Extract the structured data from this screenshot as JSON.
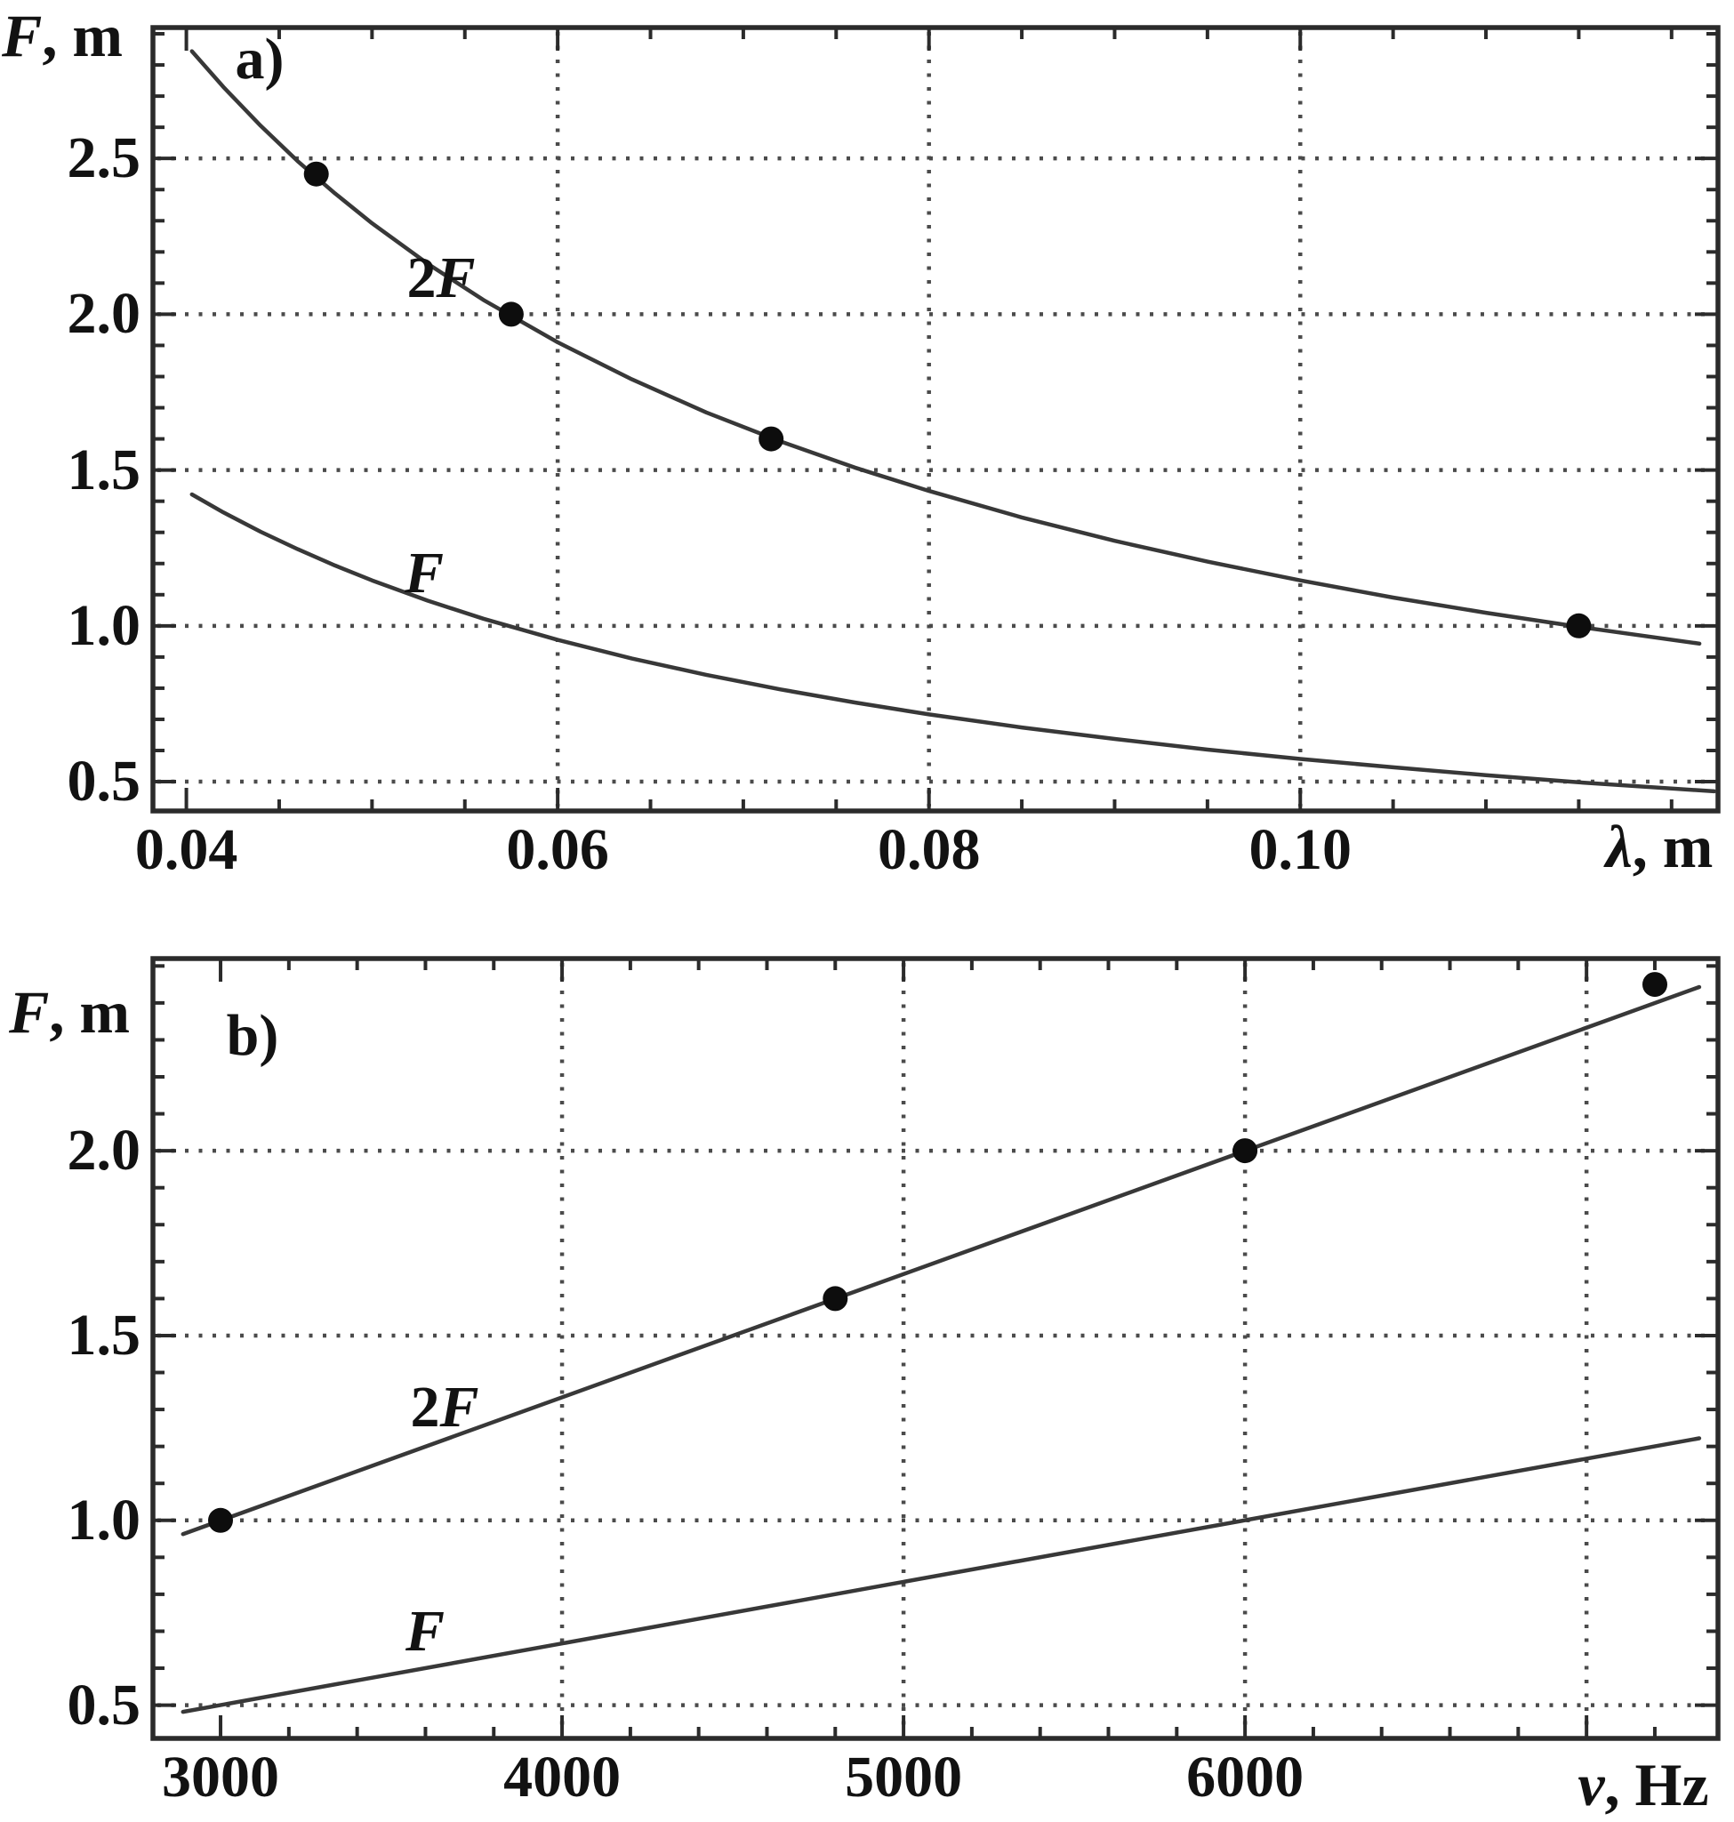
{
  "figure": {
    "background": "#ffffff",
    "ink": "#2b2b2b",
    "grid_color": "#4b4b4b",
    "point_color": "#0d0d0d"
  },
  "chart_data": [
    {
      "type": "line",
      "panel_label": "a)",
      "y_label_sym": "F",
      "y_label_rest": ", m",
      "x_label_sym": "λ",
      "x_label_rest": ", m",
      "xlim": [
        0.0382,
        0.1225
      ],
      "ylim": [
        0.406,
        2.92
      ],
      "x_ticks": [
        {
          "v": 0.04,
          "label": "0.04"
        },
        {
          "v": 0.06,
          "label": "0.06"
        },
        {
          "v": 0.08,
          "label": "0.08"
        },
        {
          "v": 0.1,
          "label": "0.10"
        }
      ],
      "y_ticks": [
        {
          "v": 0.5,
          "label": "0.5"
        },
        {
          "v": 1.0,
          "label": "1.0"
        },
        {
          "v": 1.5,
          "label": "1.5"
        },
        {
          "v": 2.0,
          "label": "2.0"
        },
        {
          "v": 2.5,
          "label": "2.5"
        }
      ],
      "x_minor_step": 0.005,
      "y_minor_step": 0.1,
      "x_gridlines": [
        0.06,
        0.08,
        0.1
      ],
      "y_gridlines": [
        0.5,
        1.0,
        1.5,
        2.0,
        2.5
      ],
      "grid_style": "dotted",
      "series": [
        {
          "name": "2F",
          "label_prefix": "2",
          "label_sym": "F",
          "curve": [
            [
              0.0403,
              2.844
            ],
            [
              0.042,
              2.729
            ],
            [
              0.044,
              2.605
            ],
            [
              0.046,
              2.491
            ],
            [
              0.048,
              2.388
            ],
            [
              0.05,
              2.292
            ],
            [
              0.053,
              2.162
            ],
            [
              0.056,
              2.046
            ],
            [
              0.06,
              1.91
            ],
            [
              0.064,
              1.791
            ],
            [
              0.068,
              1.685
            ],
            [
              0.072,
              1.592
            ],
            [
              0.076,
              1.508
            ],
            [
              0.08,
              1.433
            ],
            [
              0.085,
              1.348
            ],
            [
              0.09,
              1.273
            ],
            [
              0.095,
              1.206
            ],
            [
              0.1,
              1.146
            ],
            [
              0.105,
              1.091
            ],
            [
              0.11,
              1.042
            ],
            [
              0.115,
              0.997
            ],
            [
              0.1215,
              0.943
            ]
          ],
          "points": [
            [
              0.047,
              2.45
            ],
            [
              0.0575,
              2.0
            ],
            [
              0.0715,
              1.6
            ],
            [
              0.115,
              1.0
            ]
          ]
        },
        {
          "name": "F",
          "label_prefix": "",
          "label_sym": "F",
          "curve": [
            [
              0.0403,
              1.422
            ],
            [
              0.042,
              1.364
            ],
            [
              0.044,
              1.302
            ],
            [
              0.046,
              1.246
            ],
            [
              0.048,
              1.194
            ],
            [
              0.05,
              1.146
            ],
            [
              0.053,
              1.081
            ],
            [
              0.056,
              1.023
            ],
            [
              0.06,
              0.955
            ],
            [
              0.064,
              0.895
            ],
            [
              0.068,
              0.843
            ],
            [
              0.072,
              0.796
            ],
            [
              0.076,
              0.754
            ],
            [
              0.08,
              0.716
            ],
            [
              0.085,
              0.674
            ],
            [
              0.09,
              0.637
            ],
            [
              0.095,
              0.603
            ],
            [
              0.1,
              0.573
            ],
            [
              0.105,
              0.546
            ],
            [
              0.11,
              0.521
            ],
            [
              0.115,
              0.498
            ],
            [
              0.1223,
              0.469
            ]
          ],
          "points": []
        }
      ]
    },
    {
      "type": "line",
      "panel_label": "b)",
      "y_label_sym": "F",
      "y_label_rest": ", m",
      "x_label_sym": "ν",
      "x_label_rest": ", Hz",
      "xlim": [
        2802,
        7385
      ],
      "ylim": [
        0.41,
        2.52
      ],
      "x_ticks": [
        {
          "v": 3000,
          "label": "3000"
        },
        {
          "v": 4000,
          "label": "4000"
        },
        {
          "v": 5000,
          "label": "5000"
        },
        {
          "v": 6000,
          "label": "6000"
        }
      ],
      "y_ticks": [
        {
          "v": 0.5,
          "label": "0.5"
        },
        {
          "v": 1.0,
          "label": "1.0"
        },
        {
          "v": 1.5,
          "label": "1.5"
        },
        {
          "v": 2.0,
          "label": "2.0"
        }
      ],
      "x_minor_step": 200,
      "y_minor_step": 0.1,
      "x_gridlines": [
        4000,
        5000,
        6000,
        7000
      ],
      "y_gridlines": [
        0.5,
        1.0,
        1.5,
        2.0
      ],
      "grid_style": "dotted",
      "series": [
        {
          "name": "2F",
          "label_prefix": "2",
          "label_sym": "F",
          "curve": [
            [
              2890,
              0.963
            ],
            [
              7330,
              2.443
            ]
          ],
          "points": [
            [
              3000,
              1.0
            ],
            [
              4800,
              1.6
            ],
            [
              6000,
              2.0
            ],
            [
              7200,
              2.45
            ]
          ]
        },
        {
          "name": "F",
          "label_prefix": "",
          "label_sym": "F",
          "curve": [
            [
              2890,
              0.482
            ],
            [
              7330,
              1.222
            ]
          ],
          "points": []
        }
      ]
    }
  ]
}
